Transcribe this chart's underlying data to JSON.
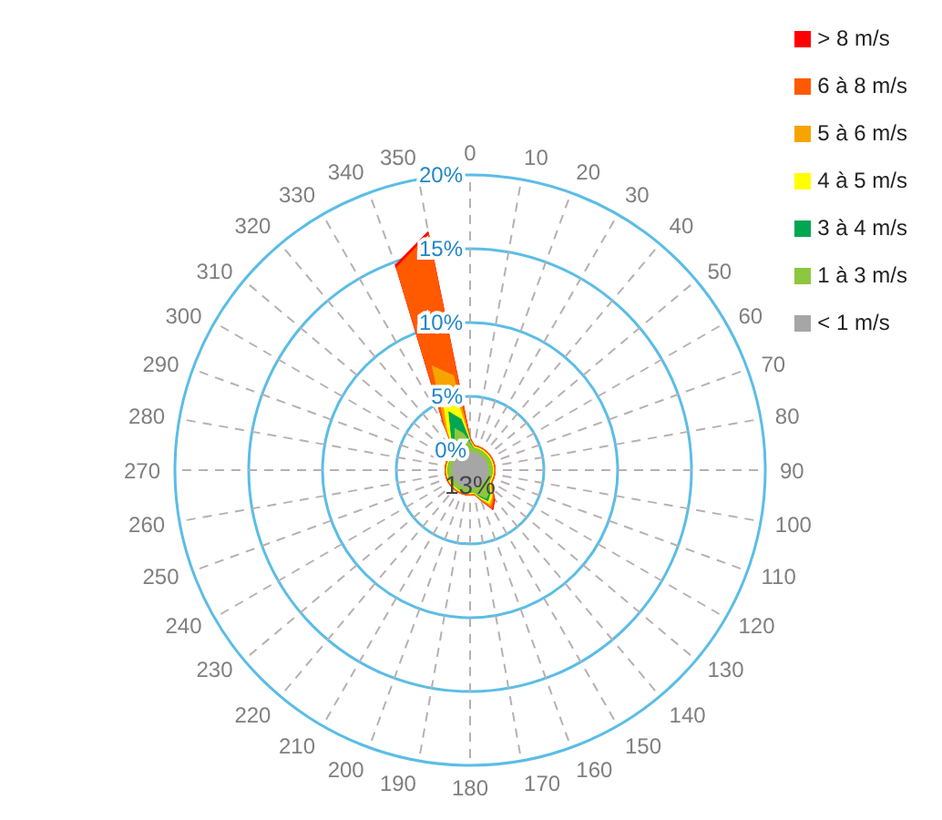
{
  "chart_data": {
    "type": "radar",
    "categories": [
      "0",
      "10",
      "20",
      "30",
      "40",
      "50",
      "60",
      "70",
      "80",
      "90",
      "100",
      "110",
      "120",
      "130",
      "140",
      "150",
      "160",
      "170",
      "180",
      "190",
      "200",
      "210",
      "220",
      "230",
      "240",
      "250",
      "260",
      "270",
      "280",
      "290",
      "300",
      "310",
      "320",
      "330",
      "340",
      "350"
    ],
    "series": [
      {
        "name": "> 8 m/s",
        "color": "#ff0000",
        "values": [
          2.2,
          1.7,
          1.7,
          1.7,
          1.7,
          1.7,
          1.7,
          1.7,
          1.7,
          1.7,
          1.7,
          1.7,
          1.7,
          2,
          2.6,
          3.1,
          2.2,
          1.7,
          1.7,
          1.7,
          1.7,
          1.7,
          1.7,
          1.7,
          1.7,
          1.7,
          1.7,
          1.7,
          1.7,
          1.7,
          1.7,
          1.7,
          1.7,
          3.6,
          14.8,
          16.4
        ]
      },
      {
        "name": "6 à 8 m/s",
        "color": "#ff5a00",
        "values": [
          2.1,
          1.7,
          1.7,
          1.7,
          1.7,
          1.7,
          1.7,
          1.7,
          1.7,
          1.7,
          1.7,
          1.7,
          1.7,
          2,
          2.5,
          3,
          2.2,
          1.7,
          1.7,
          1.7,
          1.7,
          1.7,
          1.7,
          1.7,
          1.7,
          1.7,
          1.7,
          1.7,
          1.7,
          1.7,
          1.7,
          1.7,
          1.7,
          3.5,
          14.6,
          16.2
        ]
      },
      {
        "name": "5 à 6 m/s",
        "color": "#f7a400",
        "values": [
          2,
          1.6,
          1.6,
          1.6,
          1.6,
          1.6,
          1.6,
          1.6,
          1.6,
          1.6,
          1.6,
          1.6,
          1.6,
          1.9,
          2.4,
          2.8,
          2.1,
          1.6,
          1.6,
          1.6,
          1.6,
          1.6,
          1.6,
          1.6,
          1.6,
          1.6,
          1.6,
          1.6,
          1.6,
          1.6,
          1.6,
          1.6,
          1.6,
          3.3,
          7.5,
          6.5
        ]
      },
      {
        "name": "4 à 5 m/s",
        "color": "#ffff00",
        "values": [
          2,
          1.6,
          1.6,
          1.6,
          1.6,
          1.6,
          1.6,
          1.6,
          1.6,
          1.6,
          1.6,
          1.6,
          1.6,
          1.8,
          2.3,
          2.6,
          2,
          1.6,
          1.6,
          1.6,
          1.6,
          1.6,
          1.6,
          1.6,
          1.6,
          1.6,
          1.6,
          1.6,
          1.6,
          1.6,
          1.6,
          1.6,
          1.6,
          3,
          5.5,
          4.5
        ]
      },
      {
        "name": "3 à 4 m/s",
        "color": "#00a651",
        "values": [
          1.9,
          1.5,
          1.5,
          1.5,
          1.5,
          1.5,
          1.5,
          1.5,
          1.5,
          1.5,
          1.5,
          1.5,
          1.5,
          1.7,
          2.1,
          2.4,
          1.9,
          1.5,
          1.5,
          1.5,
          1.5,
          1.5,
          1.5,
          1.5,
          1.5,
          1.5,
          1.5,
          1.5,
          1.5,
          1.5,
          1.5,
          1.5,
          1.5,
          2.5,
          4.2,
          3.5
        ]
      },
      {
        "name": "1 à 3 m/s",
        "color": "#8dc63f",
        "values": [
          1.8,
          1.5,
          1.5,
          1.5,
          1.5,
          1.5,
          1.5,
          1.5,
          1.5,
          1.5,
          1.5,
          1.5,
          1.5,
          1.7,
          2,
          2.2,
          1.8,
          1.5,
          1.5,
          1.5,
          1.5,
          1.5,
          1.5,
          1.5,
          1.5,
          1.5,
          1.5,
          1.5,
          1.5,
          1.5,
          1.5,
          1.5,
          1.5,
          2,
          3,
          2.5
        ]
      },
      {
        "name": "< 1 m/s",
        "color": "#a6a6a6",
        "values": [
          1.2,
          1.2,
          1.2,
          1.2,
          1.2,
          1.2,
          1.2,
          1.2,
          1.2,
          1.2,
          1.2,
          1.2,
          1.2,
          1.2,
          1.2,
          1.2,
          1.2,
          1.2,
          1.2,
          1.2,
          1.2,
          1.2,
          1.2,
          1.2,
          1.2,
          1.2,
          1.2,
          1.2,
          1.2,
          1.2,
          1.2,
          1.2,
          1.2,
          1.2,
          1.2,
          1.2
        ]
      }
    ],
    "ylim": [
      0,
      20
    ],
    "yticks": [
      {
        "value": 0,
        "label": "0%"
      },
      {
        "value": 5,
        "label": "5%"
      },
      {
        "value": 10,
        "label": "10%"
      },
      {
        "value": 15,
        "label": "15%"
      },
      {
        "value": 20,
        "label": "20%"
      }
    ],
    "grid": true,
    "legend": "top right",
    "marker": "none",
    "annotations": [
      "13%"
    ]
  }
}
